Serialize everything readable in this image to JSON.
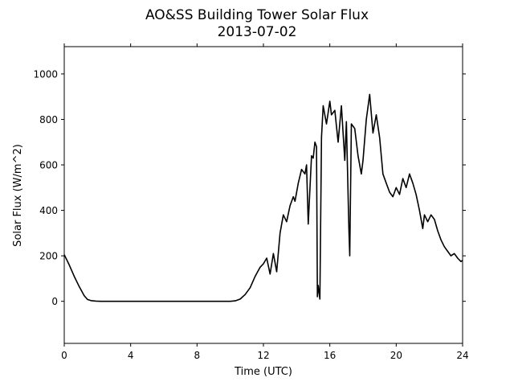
{
  "chart_data": {
    "type": "line",
    "title": "AO&SS Building Tower Solar Flux",
    "subtitle": "2013-07-02",
    "xlabel": "Time (UTC)",
    "ylabel": "Solar Flux (W/m^2)",
    "xlim": [
      0,
      24
    ],
    "ylim": [
      -185,
      1120
    ],
    "xticks": [
      0,
      4,
      8,
      12,
      16,
      20,
      24
    ],
    "yticks": [
      0,
      200,
      400,
      600,
      800,
      1000
    ],
    "grid": false,
    "legend": "none",
    "line_color": "#000000",
    "series": [
      {
        "x": [
          0,
          0.3,
          0.6,
          0.9,
          1.2,
          1.4,
          1.6,
          1.9,
          2.2,
          3,
          4,
          5,
          6,
          7,
          8,
          9,
          10,
          10.3,
          10.6,
          10.9,
          11.2,
          11.5,
          11.8,
          12.0,
          12.2,
          12.4,
          12.6,
          12.8,
          13.0,
          13.2,
          13.4,
          13.6,
          13.8,
          13.9,
          14.1,
          14.3,
          14.5,
          14.6,
          14.7,
          14.9,
          15.0,
          15.1,
          15.2,
          15.25,
          15.3,
          15.4,
          15.5,
          15.6,
          15.8,
          16.0,
          16.1,
          16.3,
          16.5,
          16.7,
          16.9,
          17.0,
          17.15,
          17.2,
          17.3,
          17.5,
          17.7,
          17.9,
          18.0,
          18.2,
          18.4,
          18.6,
          18.8,
          19.0,
          19.2,
          19.4,
          19.6,
          19.8,
          20.0,
          20.2,
          20.4,
          20.6,
          20.8,
          21.0,
          21.2,
          21.4,
          21.6,
          21.7,
          21.9,
          22.1,
          22.3,
          22.5,
          22.7,
          22.9,
          23.1,
          23.3,
          23.5,
          23.7,
          23.9,
          24.0
        ],
        "y": [
          205,
          160,
          110,
          65,
          25,
          8,
          3,
          1,
          0,
          0,
          0,
          0,
          0,
          0,
          0,
          0,
          0,
          2,
          10,
          30,
          60,
          110,
          150,
          165,
          190,
          120,
          210,
          130,
          300,
          380,
          350,
          420,
          460,
          440,
          520,
          580,
          560,
          600,
          340,
          640,
          630,
          700,
          680,
          20,
          70,
          10,
          720,
          860,
          780,
          880,
          820,
          840,
          700,
          860,
          620,
          790,
          320,
          200,
          780,
          760,
          640,
          560,
          620,
          800,
          910,
          740,
          820,
          720,
          560,
          520,
          480,
          460,
          500,
          470,
          540,
          500,
          560,
          520,
          470,
          400,
          320,
          380,
          350,
          380,
          360,
          310,
          270,
          240,
          220,
          200,
          210,
          190,
          175,
          180
        ]
      }
    ]
  }
}
